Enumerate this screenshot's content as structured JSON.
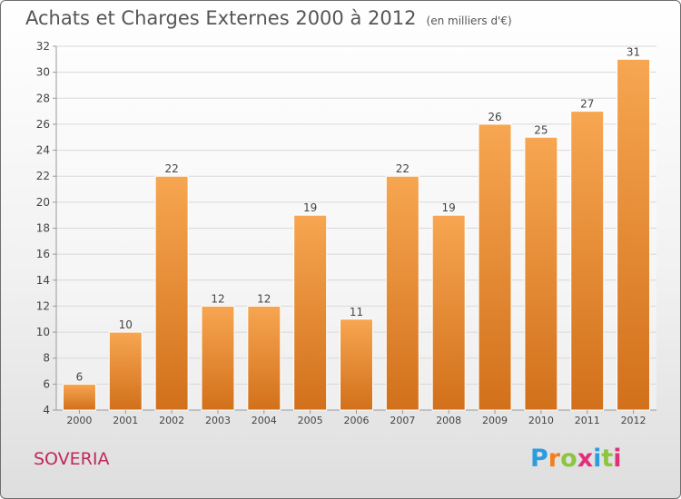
{
  "title": "Achats et Charges Externes 2000 à 2012",
  "unit": "(en milliers d'€)",
  "commune": "SOVERIA",
  "logo_text": "Proxiti",
  "colors": {
    "bar_light": "#f7a651",
    "bar_dark": "#d2701b",
    "grid": "#d8d8d8",
    "axis": "#999999",
    "text": "#444444",
    "commune": "#c0285a",
    "logo": [
      "#2a9de0",
      "#f08020",
      "#8cc63f",
      "#e0307a",
      "#2a9de0",
      "#8cc63f",
      "#e0307a"
    ]
  },
  "chart_data": {
    "type": "bar",
    "categories": [
      "2000",
      "2001",
      "2002",
      "2003",
      "2004",
      "2005",
      "2006",
      "2007",
      "2008",
      "2009",
      "2010",
      "2011",
      "2012"
    ],
    "values": [
      6,
      10,
      22,
      12,
      12,
      19,
      11,
      22,
      19,
      26,
      25,
      27,
      31
    ],
    "yticks": [
      4,
      6,
      8,
      10,
      12,
      14,
      16,
      18,
      20,
      22,
      24,
      26,
      28,
      30,
      32
    ],
    "ylim": [
      4,
      32
    ],
    "grid": true,
    "xlabel": "",
    "ylabel": ""
  }
}
